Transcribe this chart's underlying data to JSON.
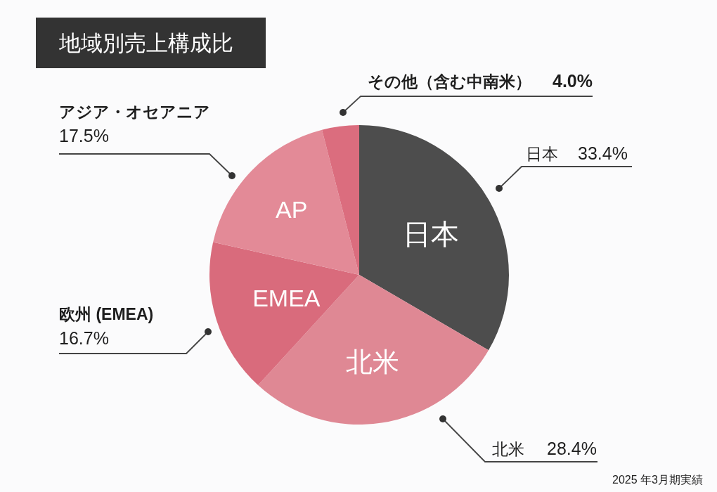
{
  "chart_data": {
    "type": "pie",
    "title": "地域別売上構成比",
    "categories": [
      "日本",
      "北米",
      "欧州 (EMEA)",
      "アジア・オセアニア",
      "その他（含む中南米）"
    ],
    "values": [
      33.4,
      28.4,
      16.7,
      17.5,
      4.0
    ],
    "colors": [
      "#4d4d4d",
      "#df8894",
      "#d96b7c",
      "#e38a97",
      "#db6d7e"
    ],
    "value_labels": [
      "33.4%",
      "28.4%",
      "16.7%",
      "17.5%",
      "4.0%"
    ],
    "annotations": [
      {
        "text": "日本",
        "x": "日本"
      },
      {
        "text": "北米",
        "x": "北米"
      },
      {
        "text": "EMEA",
        "x": "欧州 (EMEA)"
      },
      {
        "text": "AP",
        "x": "アジア・オセアニア"
      },
      "2025 年3月期実績"
    ]
  }
}
